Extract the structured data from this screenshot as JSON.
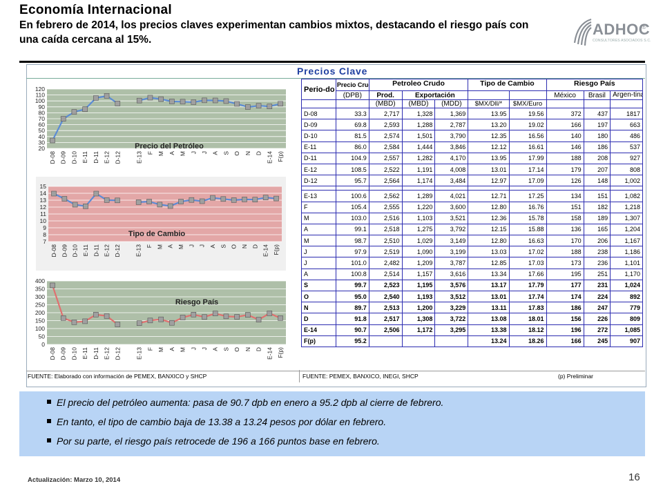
{
  "header": {
    "title": "Economía Internacional",
    "subtitle": "En febrero de 2014, los precios claves experimentan cambios mixtos, destacando el riesgo país con una caída  cercana al  15%.",
    "logo_text": "ADHOC",
    "logo_reg": "®",
    "logo_sub": "CONSULTORES ASOCIADOS S.C."
  },
  "panel": {
    "title": "Precios Clave",
    "source_left": "FUENTE: Elaborado con información de PEMEX, BANXICO y SHCP",
    "source_mid": "FUENTE: PEMEX, BANXICO, INEGI, SHCP",
    "source_right": "(p) Preliminar"
  },
  "chart_data": [
    {
      "type": "line",
      "title": "Precio del Petróleo",
      "categories": [
        "D-08",
        "D-09",
        "D-10",
        "E-11",
        "D-11",
        "E-12",
        "D-12",
        "",
        "E-13",
        "F",
        "M",
        "A",
        "M",
        "J",
        "J",
        "A",
        "S",
        "O",
        "N",
        "D",
        "E-14",
        "F(p)"
      ],
      "values": [
        33.3,
        69.8,
        81.5,
        86.0,
        104.9,
        108.5,
        95.7,
        null,
        100.6,
        105.4,
        103.0,
        99.1,
        98.7,
        97.9,
        101.0,
        100.8,
        99.7,
        95.0,
        89.7,
        91.8,
        90.7,
        95.2
      ],
      "yticks": [
        20,
        30,
        40,
        50,
        60,
        70,
        80,
        90,
        100,
        110,
        120
      ],
      "ylim": [
        20,
        120
      ],
      "colors": {
        "background": "#aebfa8",
        "line": "#5b8bd6",
        "marker": "#a0a0a0"
      }
    },
    {
      "type": "line",
      "title": "Tipo de Cambio",
      "categories": [
        "D-08",
        "D-09",
        "D-10",
        "E-11",
        "D-11",
        "E-12",
        "D-12",
        "",
        "E-13",
        "F",
        "M",
        "A",
        "M",
        "J",
        "J",
        "A",
        "S",
        "O",
        "N",
        "D",
        "E-14",
        "F(p)"
      ],
      "values": [
        13.95,
        13.2,
        12.35,
        12.12,
        13.95,
        13.01,
        12.97,
        null,
        12.71,
        12.8,
        12.36,
        12.15,
        12.8,
        13.03,
        12.85,
        13.34,
        13.17,
        13.01,
        13.11,
        13.08,
        13.38,
        13.24
      ],
      "yticks": [
        7,
        8,
        9,
        10,
        11,
        12,
        13,
        14,
        15
      ],
      "ylim": [
        7,
        15
      ],
      "colors": {
        "background": "#e3a7a7",
        "line": "#5b8bd6",
        "marker": "#a0a0a0"
      }
    },
    {
      "type": "line",
      "title": "Riesgo País",
      "categories": [
        "D-08",
        "D-09",
        "D-10",
        "E-11",
        "D-11",
        "E-12",
        "D-12",
        "",
        "E-13",
        "F",
        "M",
        "A",
        "M",
        "J",
        "J",
        "A",
        "S",
        "O",
        "N",
        "D",
        "E-14",
        "F(p)"
      ],
      "values": [
        372,
        166,
        140,
        146,
        188,
        179,
        126,
        null,
        134,
        151,
        158,
        136,
        170,
        188,
        173,
        195,
        177,
        174,
        186,
        156,
        196,
        166
      ],
      "yticks": [
        0,
        50,
        100,
        150,
        200,
        250,
        300,
        350,
        400
      ],
      "ylim": [
        0,
        400
      ],
      "colors": {
        "background": "#aebfa8",
        "line": "#e07070",
        "marker": "#a0a0a0"
      }
    }
  ],
  "table": {
    "h1": {
      "periodo": "Perio-do",
      "precio": "Precio Crudo MX",
      "petroleo": "Petroleo Crudo",
      "cambio": "Tipo de Cambio",
      "riesgo": "Riesgo País"
    },
    "h2": {
      "dpb": "(DPB)",
      "prod": "Prod.",
      "export": "Exportación",
      "mbd1": "(MBD)",
      "mbd2": "(MBD)",
      "mdd": "(MDD)",
      "usd_mx": "$MX/Dll/*",
      "eur_mx": "$MX/Euro",
      "mexico": "México",
      "brasil": "Brasil",
      "argentina": "Argen-tina"
    },
    "rows": [
      [
        "D-08",
        "33.3",
        "2,717",
        "1,328",
        "1,369",
        "13.95",
        "19.56",
        "372",
        "437",
        "1817"
      ],
      [
        "D-09",
        "69.8",
        "2,593",
        "1,288",
        "2,787",
        "13.20",
        "19.02",
        "166",
        "197",
        "663"
      ],
      [
        "D-10",
        "81.5",
        "2,574",
        "1,501",
        "3,790",
        "12.35",
        "16.56",
        "140",
        "180",
        "486"
      ],
      [
        "E-11",
        "86.0",
        "2,584",
        "1,444",
        "3,846",
        "12.12",
        "16.61",
        "146",
        "186",
        "537"
      ],
      [
        "D-11",
        "104.9",
        "2,557",
        "1,282",
        "4,170",
        "13.95",
        "17.99",
        "188",
        "208",
        "927"
      ],
      [
        "E-12",
        "108.5",
        "2,522",
        "1,191",
        "4,008",
        "13.01",
        "17.14",
        "179",
        "207",
        "808"
      ],
      [
        "D-12",
        "95.7",
        "2,564",
        "1,174",
        "3,484",
        "12.97",
        "17.09",
        "126",
        "148",
        "1,002"
      ],
      null,
      [
        "E-13",
        "100.6",
        "2,562",
        "1,289",
        "4,021",
        "12.71",
        "17.25",
        "134",
        "151",
        "1,082"
      ],
      [
        "F",
        "105.4",
        "2,555",
        "1,220",
        "3,600",
        "12.80",
        "16.76",
        "151",
        "182",
        "1,218"
      ],
      [
        "M",
        "103.0",
        "2,516",
        "1,103",
        "3,521",
        "12.36",
        "15.78",
        "158",
        "189",
        "1,307"
      ],
      [
        "A",
        "99.1",
        "2,518",
        "1,275",
        "3,792",
        "12.15",
        "15.88",
        "136",
        "165",
        "1,204"
      ],
      [
        "M",
        "98.7",
        "2,510",
        "1,029",
        "3,149",
        "12.80",
        "16.63",
        "170",
        "206",
        "1,167"
      ],
      [
        "J",
        "97.9",
        "2,519",
        "1,090",
        "3,199",
        "13.03",
        "17.02",
        "188",
        "238",
        "1,186"
      ],
      [
        "J",
        "101.0",
        "2,482",
        "1,209",
        "3,787",
        "12.85",
        "17.03",
        "173",
        "236",
        "1,101"
      ],
      [
        "A",
        "100.8",
        "2,514",
        "1,157",
        "3,616",
        "13.34",
        "17.66",
        "195",
        "251",
        "1,170"
      ],
      [
        "S",
        "99.7",
        "2,523",
        "1,195",
        "3,576",
        "13.17",
        "17.79",
        "177",
        "231",
        "1,024"
      ],
      [
        "O",
        "95.0",
        "2,540",
        "1,193",
        "3,512",
        "13.01",
        "17.74",
        "174",
        "224",
        "892"
      ],
      [
        "N",
        "89.7",
        "2,513",
        "1,200",
        "3,229",
        "13.11",
        "17.83",
        "186",
        "247",
        "779"
      ],
      [
        "D",
        "91.8",
        "2,517",
        "1,308",
        "3,722",
        "13.08",
        "18.01",
        "156",
        "226",
        "809"
      ],
      [
        "E-14",
        "90.7",
        "2,506",
        "1,172",
        "3,295",
        "13.38",
        "18.12",
        "196",
        "272",
        "1,085"
      ],
      [
        "F(p)",
        "95.2",
        "",
        "",
        "",
        "13.24",
        "18.26",
        "166",
        "245",
        "907"
      ]
    ],
    "bold_from": 16
  },
  "bullets": [
    "El precio del petróleo aumenta: pasa de 90.7 dpb en enero a 95.2 dpb al cierre de febrero.",
    "En tanto, el tipo de cambio baja de 13.38  a 13.24 pesos por dólar en febrero.",
    "Por su parte, el riesgo país retrocede de 196 a 166 puntos base en febrero."
  ],
  "footer": "Actualización:  Marzo 10, 2014",
  "page_number": "16"
}
